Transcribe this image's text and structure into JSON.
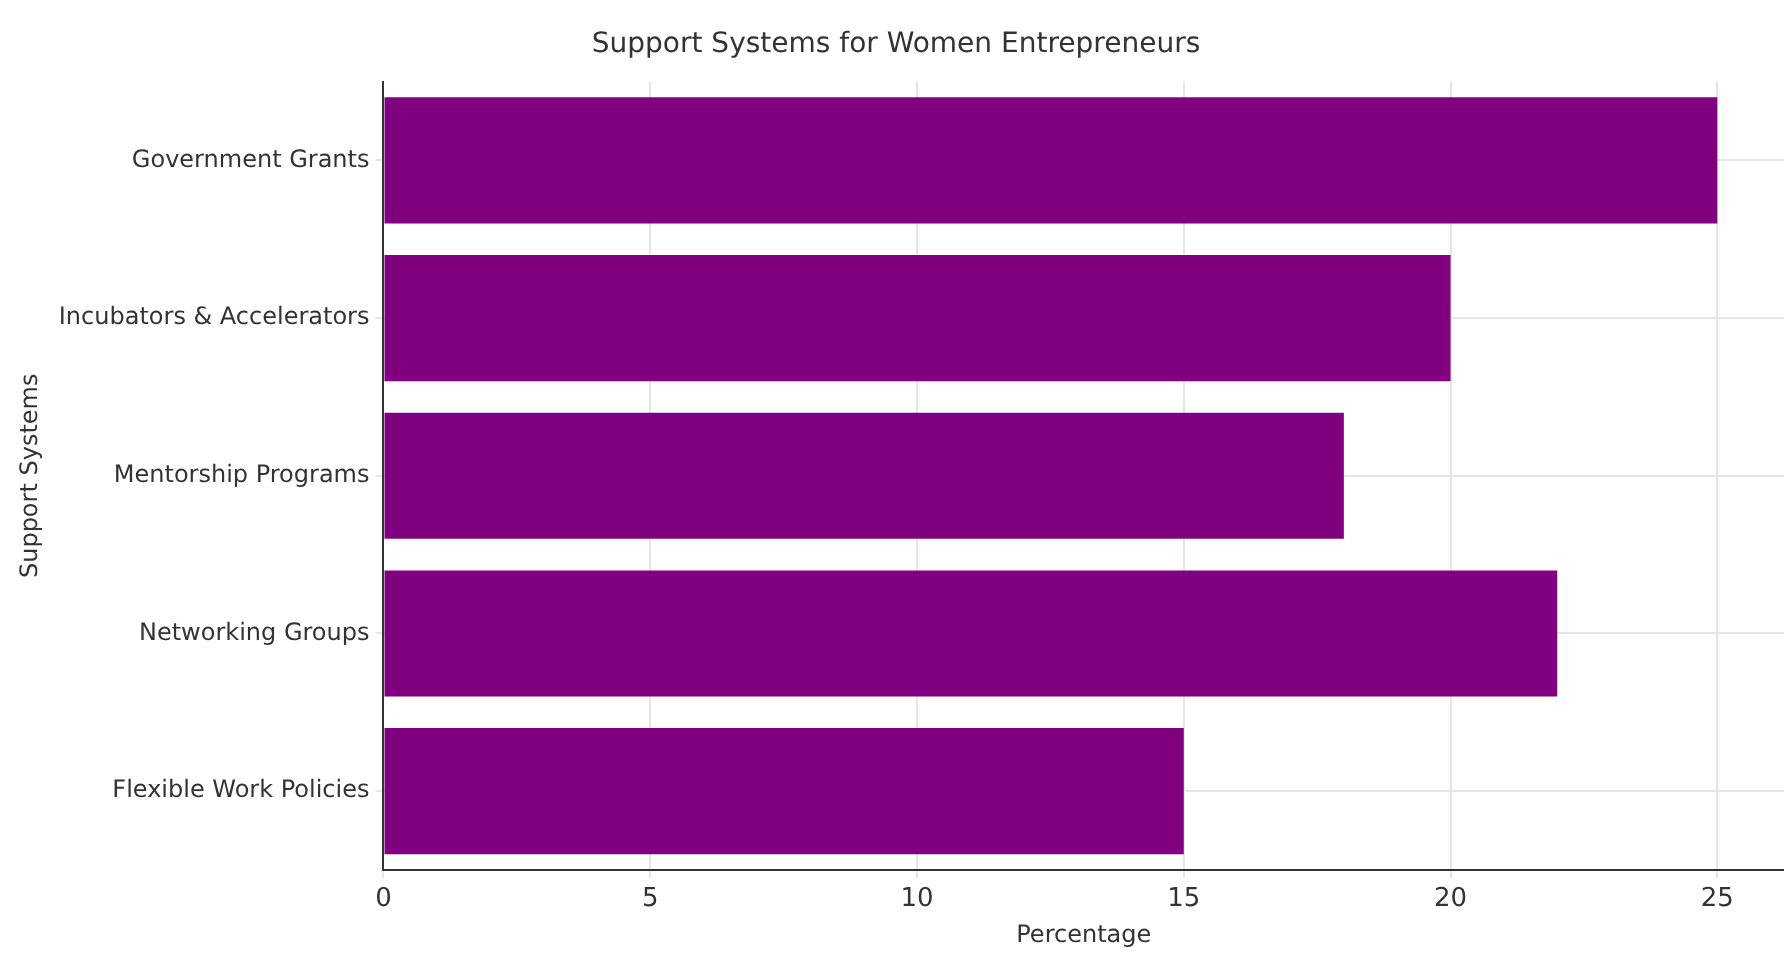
{
  "chart_data": {
    "type": "bar",
    "orientation": "horizontal",
    "title": "Support Systems for Women Entrepreneurs",
    "xlabel": "Percentage",
    "ylabel": "Support Systems",
    "categories": [
      "Government Grants",
      "Incubators & Accelerators",
      "Mentorship Programs",
      "Networking Groups",
      "Flexible Work Policies"
    ],
    "values": [
      25,
      20,
      18,
      22,
      15
    ],
    "color": "#800080",
    "xlim": [
      0,
      26.25
    ],
    "xticks": [
      0,
      5,
      10,
      15,
      20,
      25
    ],
    "grid": true,
    "legend": false
  }
}
